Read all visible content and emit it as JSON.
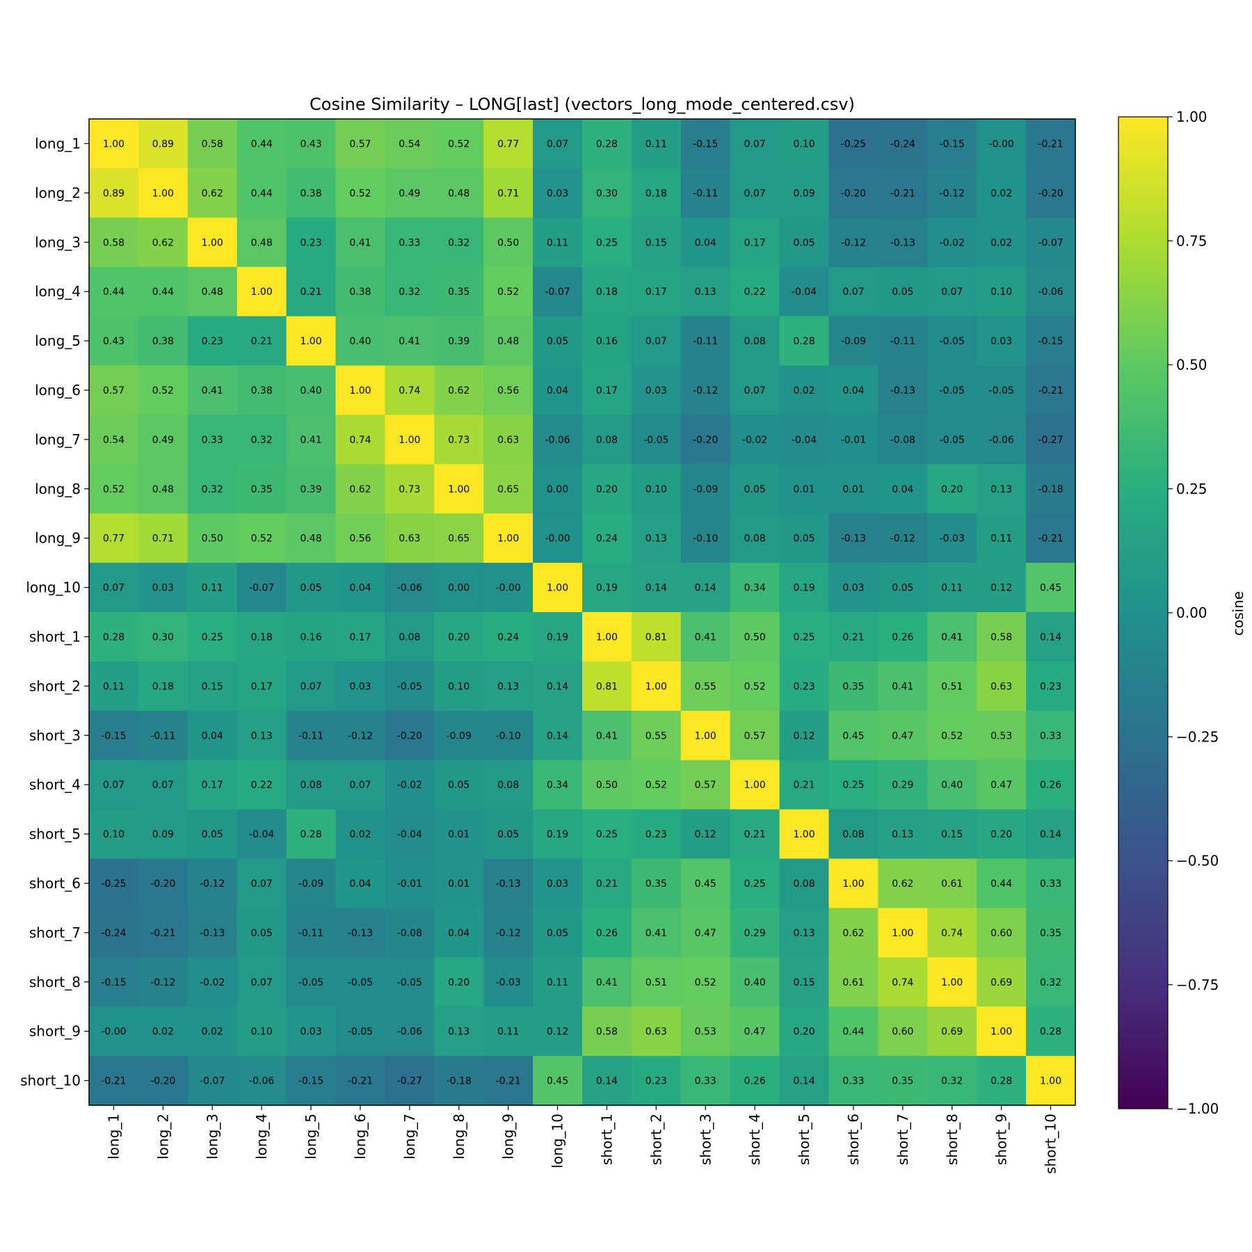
{
  "chart_data": {
    "type": "heatmap",
    "title": "Cosine Similarity – LONG[last] (vectors_long_mode_centered.csv)",
    "row_labels": [
      "long_1",
      "long_2",
      "long_3",
      "long_4",
      "long_5",
      "long_6",
      "long_7",
      "long_8",
      "long_9",
      "long_10",
      "short_1",
      "short_2",
      "short_3",
      "short_4",
      "short_5",
      "short_6",
      "short_7",
      "short_8",
      "short_9",
      "short_10"
    ],
    "col_labels": [
      "long_1",
      "long_2",
      "long_3",
      "long_4",
      "long_5",
      "long_6",
      "long_7",
      "long_8",
      "long_9",
      "long_10",
      "short_1",
      "short_2",
      "short_3",
      "short_4",
      "short_5",
      "short_6",
      "short_7",
      "short_8",
      "short_9",
      "short_10"
    ],
    "value_labels": [
      [
        "1.00",
        "0.89",
        "0.58",
        "0.44",
        "0.43",
        "0.57",
        "0.54",
        "0.52",
        "0.77",
        "0.07",
        "0.28",
        "0.11",
        "-0.15",
        "0.07",
        "0.10",
        "-0.25",
        "-0.24",
        "-0.15",
        "-0.00",
        "-0.21"
      ],
      [
        "0.89",
        "1.00",
        "0.62",
        "0.44",
        "0.38",
        "0.52",
        "0.49",
        "0.48",
        "0.71",
        "0.03",
        "0.30",
        "0.18",
        "-0.11",
        "0.07",
        "0.09",
        "-0.20",
        "-0.21",
        "-0.12",
        "0.02",
        "-0.20"
      ],
      [
        "0.58",
        "0.62",
        "1.00",
        "0.48",
        "0.23",
        "0.41",
        "0.33",
        "0.32",
        "0.50",
        "0.11",
        "0.25",
        "0.15",
        "0.04",
        "0.17",
        "0.05",
        "-0.12",
        "-0.13",
        "-0.02",
        "0.02",
        "-0.07"
      ],
      [
        "0.44",
        "0.44",
        "0.48",
        "1.00",
        "0.21",
        "0.38",
        "0.32",
        "0.35",
        "0.52",
        "-0.07",
        "0.18",
        "0.17",
        "0.13",
        "0.22",
        "-0.04",
        "0.07",
        "0.05",
        "0.07",
        "0.10",
        "-0.06"
      ],
      [
        "0.43",
        "0.38",
        "0.23",
        "0.21",
        "1.00",
        "0.40",
        "0.41",
        "0.39",
        "0.48",
        "0.05",
        "0.16",
        "0.07",
        "-0.11",
        "0.08",
        "0.28",
        "-0.09",
        "-0.11",
        "-0.05",
        "0.03",
        "-0.15"
      ],
      [
        "0.57",
        "0.52",
        "0.41",
        "0.38",
        "0.40",
        "1.00",
        "0.74",
        "0.62",
        "0.56",
        "0.04",
        "0.17",
        "0.03",
        "-0.12",
        "0.07",
        "0.02",
        "0.04",
        "-0.13",
        "-0.05",
        "-0.05",
        "-0.21"
      ],
      [
        "0.54",
        "0.49",
        "0.33",
        "0.32",
        "0.41",
        "0.74",
        "1.00",
        "0.73",
        "0.63",
        "-0.06",
        "0.08",
        "-0.05",
        "-0.20",
        "-0.02",
        "-0.04",
        "-0.01",
        "-0.08",
        "-0.05",
        "-0.06",
        "-0.27"
      ],
      [
        "0.52",
        "0.48",
        "0.32",
        "0.35",
        "0.39",
        "0.62",
        "0.73",
        "1.00",
        "0.65",
        "0.00",
        "0.20",
        "0.10",
        "-0.09",
        "0.05",
        "0.01",
        "0.01",
        "0.04",
        "0.20",
        "0.13",
        "-0.18"
      ],
      [
        "0.77",
        "0.71",
        "0.50",
        "0.52",
        "0.48",
        "0.56",
        "0.63",
        "0.65",
        "1.00",
        "-0.00",
        "0.24",
        "0.13",
        "-0.10",
        "0.08",
        "0.05",
        "-0.13",
        "-0.12",
        "-0.03",
        "0.11",
        "-0.21"
      ],
      [
        "0.07",
        "0.03",
        "0.11",
        "-0.07",
        "0.05",
        "0.04",
        "-0.06",
        "0.00",
        "-0.00",
        "1.00",
        "0.19",
        "0.14",
        "0.14",
        "0.34",
        "0.19",
        "0.03",
        "0.05",
        "0.11",
        "0.12",
        "0.45"
      ],
      [
        "0.28",
        "0.30",
        "0.25",
        "0.18",
        "0.16",
        "0.17",
        "0.08",
        "0.20",
        "0.24",
        "0.19",
        "1.00",
        "0.81",
        "0.41",
        "0.50",
        "0.25",
        "0.21",
        "0.26",
        "0.41",
        "0.58",
        "0.14"
      ],
      [
        "0.11",
        "0.18",
        "0.15",
        "0.17",
        "0.07",
        "0.03",
        "-0.05",
        "0.10",
        "0.13",
        "0.14",
        "0.81",
        "1.00",
        "0.55",
        "0.52",
        "0.23",
        "0.35",
        "0.41",
        "0.51",
        "0.63",
        "0.23"
      ],
      [
        "-0.15",
        "-0.11",
        "0.04",
        "0.13",
        "-0.11",
        "-0.12",
        "-0.20",
        "-0.09",
        "-0.10",
        "0.14",
        "0.41",
        "0.55",
        "1.00",
        "0.57",
        "0.12",
        "0.45",
        "0.47",
        "0.52",
        "0.53",
        "0.33"
      ],
      [
        "0.07",
        "0.07",
        "0.17",
        "0.22",
        "0.08",
        "0.07",
        "-0.02",
        "0.05",
        "0.08",
        "0.34",
        "0.50",
        "0.52",
        "0.57",
        "1.00",
        "0.21",
        "0.25",
        "0.29",
        "0.40",
        "0.47",
        "0.26"
      ],
      [
        "0.10",
        "0.09",
        "0.05",
        "-0.04",
        "0.28",
        "0.02",
        "-0.04",
        "0.01",
        "0.05",
        "0.19",
        "0.25",
        "0.23",
        "0.12",
        "0.21",
        "1.00",
        "0.08",
        "0.13",
        "0.15",
        "0.20",
        "0.14"
      ],
      [
        "-0.25",
        "-0.20",
        "-0.12",
        "0.07",
        "-0.09",
        "0.04",
        "-0.01",
        "0.01",
        "-0.13",
        "0.03",
        "0.21",
        "0.35",
        "0.45",
        "0.25",
        "0.08",
        "1.00",
        "0.62",
        "0.61",
        "0.44",
        "0.33"
      ],
      [
        "-0.24",
        "-0.21",
        "-0.13",
        "0.05",
        "-0.11",
        "-0.13",
        "-0.08",
        "0.04",
        "-0.12",
        "0.05",
        "0.26",
        "0.41",
        "0.47",
        "0.29",
        "0.13",
        "0.62",
        "1.00",
        "0.74",
        "0.60",
        "0.35"
      ],
      [
        "-0.15",
        "-0.12",
        "-0.02",
        "0.07",
        "-0.05",
        "-0.05",
        "-0.05",
        "0.20",
        "-0.03",
        "0.11",
        "0.41",
        "0.51",
        "0.52",
        "0.40",
        "0.15",
        "0.61",
        "0.74",
        "1.00",
        "0.69",
        "0.32"
      ],
      [
        "-0.00",
        "0.02",
        "0.02",
        "0.10",
        "0.03",
        "-0.05",
        "-0.06",
        "0.13",
        "0.11",
        "0.12",
        "0.58",
        "0.63",
        "0.53",
        "0.47",
        "0.20",
        "0.44",
        "0.60",
        "0.69",
        "1.00",
        "0.28"
      ],
      [
        "-0.21",
        "-0.20",
        "-0.07",
        "-0.06",
        "-0.15",
        "-0.21",
        "-0.27",
        "-0.18",
        "-0.21",
        "0.45",
        "0.14",
        "0.23",
        "0.33",
        "0.26",
        "0.14",
        "0.33",
        "0.35",
        "0.32",
        "0.28",
        "1.00"
      ]
    ],
    "colorbar": {
      "label": "cosine",
      "range": [
        -1,
        1
      ],
      "ticks": [
        1.0,
        0.75,
        0.5,
        0.25,
        0.0,
        -0.25,
        -0.5,
        -0.75,
        -1.0
      ],
      "tick_labels": [
        "1.00",
        "0.75",
        "0.50",
        "0.25",
        "0.00",
        "−0.25",
        "−0.50",
        "−0.75",
        "−1.00"
      ],
      "colormap": "viridis"
    },
    "grid": false
  }
}
